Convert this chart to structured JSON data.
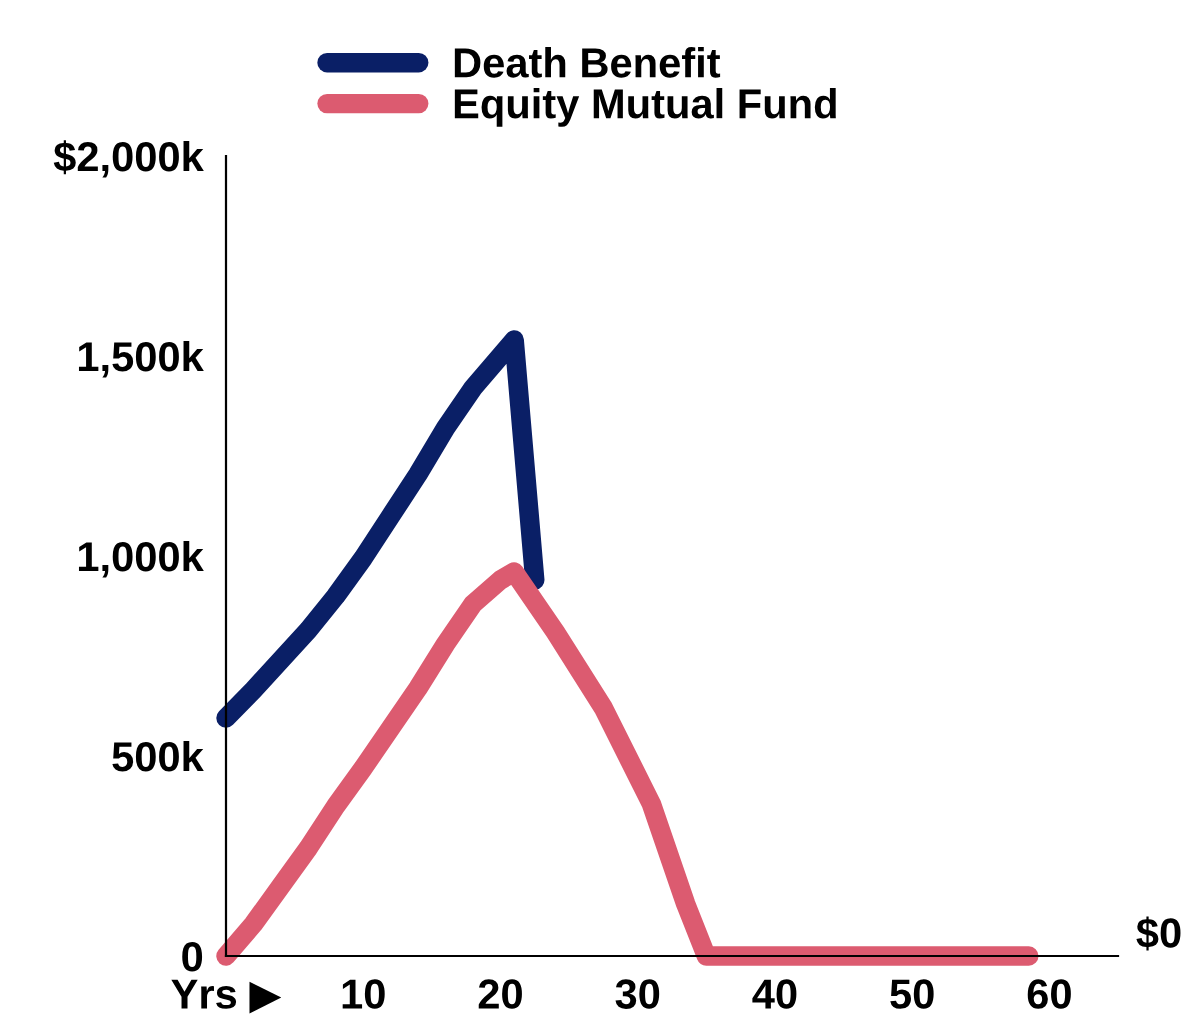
{
  "chart_data": {
    "type": "line",
    "legend": "top",
    "series": [
      {
        "name": "Death Benefit",
        "color": "#0a1f66",
        "x": [
          0,
          2,
          4,
          6,
          8,
          10,
          12,
          14,
          16,
          18,
          20,
          21,
          22.5
        ],
        "values": [
          595,
          665,
          740,
          815,
          900,
          995,
          1100,
          1205,
          1320,
          1420,
          1500,
          1540,
          940
        ]
      },
      {
        "name": "Equity Mutual Fund",
        "color": "#dc5b70",
        "x": [
          0,
          2,
          4,
          6,
          8,
          10,
          12,
          14,
          16,
          18,
          20,
          21,
          24,
          27.5,
          31,
          33.5,
          35,
          58.5
        ],
        "values": [
          0,
          80,
          175,
          270,
          375,
          470,
          570,
          670,
          780,
          880,
          940,
          960,
          810,
          620,
          380,
          130,
          0,
          0
        ]
      }
    ],
    "xlim": [
      0,
      65
    ],
    "xticks": [
      {
        "value": 0,
        "label": "Yrs ▶"
      },
      10,
      20,
      30,
      40,
      50,
      60
    ],
    "ylim": [
      0,
      2000
    ],
    "yticks": [
      {
        "value": 0,
        "label": "0"
      },
      {
        "value": 500,
        "label": "500k"
      },
      {
        "value": 1000,
        "label": "1,000k"
      },
      {
        "value": 1500,
        "label": "1,500k"
      },
      {
        "value": 2000,
        "label": "$2,000k"
      }
    ],
    "annotations": [
      "$0"
    ],
    "grid": false,
    "line_style": "solid",
    "marker": "none"
  }
}
